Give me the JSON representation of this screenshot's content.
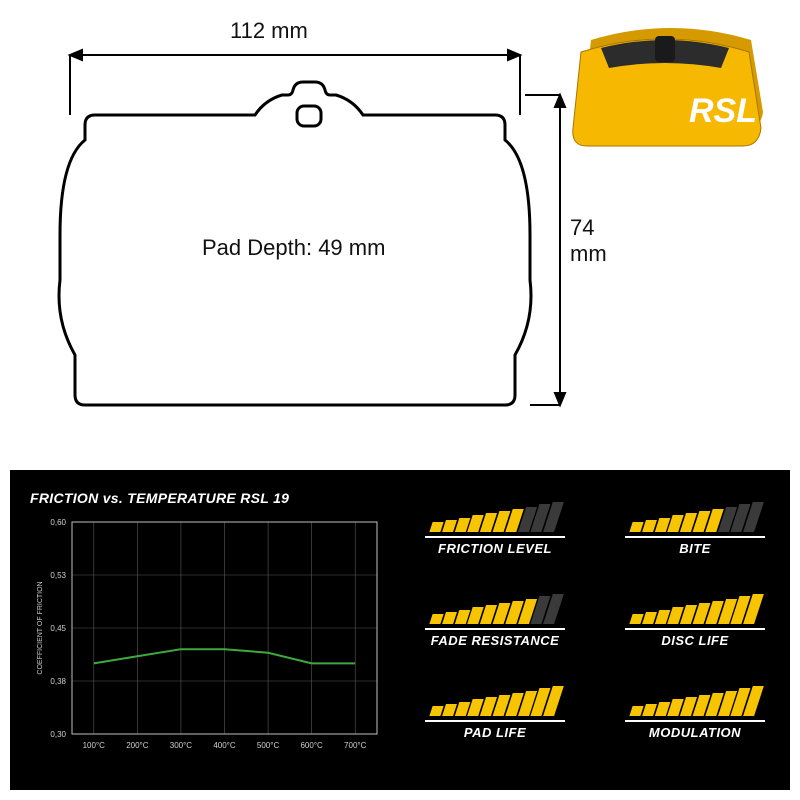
{
  "drawing": {
    "width_label": "112 mm",
    "height_label": "74 mm",
    "depth_label": "Pad Depth: 49 mm",
    "outline_color": "#000000",
    "dim_line_color": "#000000",
    "text_color": "#111111"
  },
  "product": {
    "body_color": "#f6b800",
    "logo_text": "RSL",
    "logo_color": "#ffffff",
    "friction_color": "#2c2c2c"
  },
  "chart": {
    "title": "FRICTION vs. TEMPERATURE RSL 19",
    "xlabel_ticks": [
      "100°C",
      "200°C",
      "300°C",
      "400°C",
      "500°C",
      "600°C",
      "700°C"
    ],
    "ylabel": "COEFFICIENT OF FRICTION",
    "ytick_labels": [
      "0,30",
      "0,38",
      "0,45",
      "0,53",
      "0,60"
    ],
    "ylim": [
      0.3,
      0.6
    ],
    "xlim": [
      50,
      750
    ],
    "series": {
      "x": [
        100,
        200,
        300,
        400,
        500,
        600,
        700
      ],
      "y": [
        0.4,
        0.41,
        0.42,
        0.42,
        0.415,
        0.4,
        0.4
      ],
      "color": "#3fa93f",
      "line_width": 2
    },
    "axis_color": "#bfbfbf",
    "grid_color": "#5a5a5a",
    "text_color": "#cfcfcf",
    "label_fontsize": 8,
    "ylabel_fontsize": 7
  },
  "ratings": {
    "bar_count": 10,
    "filled_color": "#f6c400",
    "empty_color": "#3a3a3a",
    "label_color": "#ffffff",
    "items": [
      {
        "label": "FRICTION LEVEL",
        "value": 7
      },
      {
        "label": "BITE",
        "value": 7
      },
      {
        "label": "FADE RESISTANCE",
        "value": 8
      },
      {
        "label": "DISC LIFE",
        "value": 10
      },
      {
        "label": "PAD LIFE",
        "value": 10
      },
      {
        "label": "MODULATION",
        "value": 10
      }
    ]
  }
}
